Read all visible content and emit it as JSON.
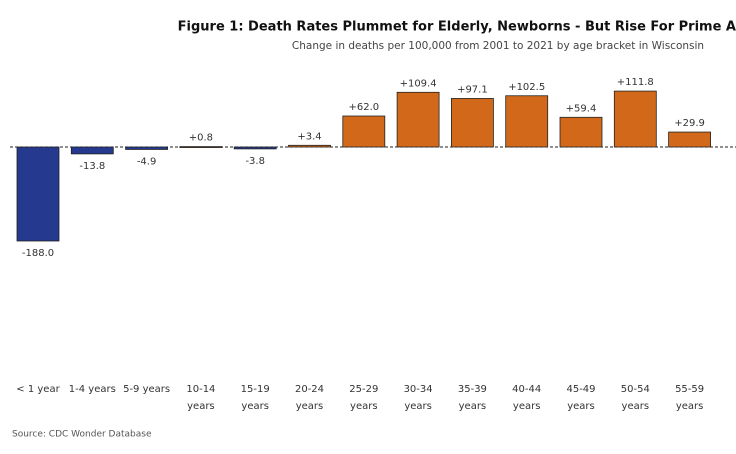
{
  "chart_data": {
    "type": "bar",
    "title": "Figure 1: Death Rates Plummet for Elderly, Newborns - But Rise For Prime A",
    "subtitle": "Change in deaths per 100,000 from 2001 to 2021 by age bracket in Wisconsin",
    "source": "Source: CDC Wonder Database",
    "categories": [
      "< 1 year",
      "1-4 years",
      "5-9 years",
      "10-14 years",
      "15-19 years",
      "20-24 years",
      "25-29 years",
      "30-34 years",
      "35-39 years",
      "40-44 years",
      "45-49 years",
      "50-54 years",
      "55-59 years"
    ],
    "values": [
      -188.0,
      -13.8,
      -4.9,
      0.8,
      -3.8,
      3.4,
      62.0,
      109.4,
      97.1,
      102.5,
      59.4,
      111.8,
      29.9
    ],
    "value_labels": [
      "-188.0",
      "-13.8",
      "-4.9",
      "+0.8",
      "-3.8",
      "+3.4",
      "+62.0",
      "+109.4",
      "+97.1",
      "+102.5",
      "+59.4",
      "+111.8",
      "+29.9"
    ],
    "positive_color": "#d2691a",
    "negative_color": "#253a8e"
  }
}
